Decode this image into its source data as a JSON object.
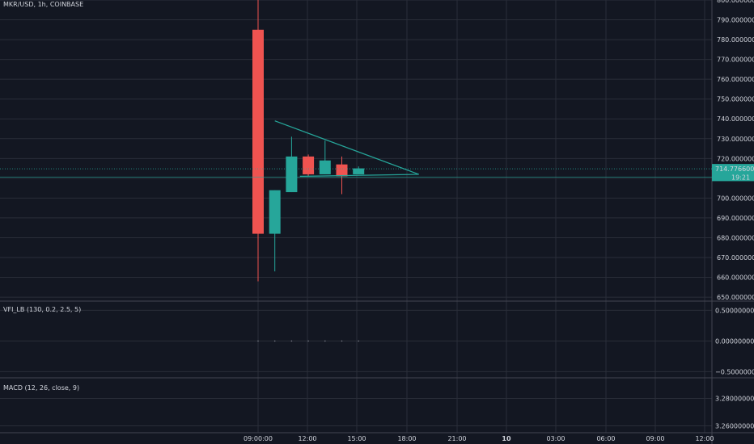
{
  "symbol_label": "MKR/USD, 1h, COINBASE",
  "colors": {
    "background": "#131722",
    "grid": "#2a2e39",
    "up": "#26a69a",
    "down": "#ef5350",
    "trendline": "#26a69a",
    "text": "#d1d4dc"
  },
  "chart_data": [
    {
      "type": "candlestick",
      "title": "MKR/USD, 1h, COINBASE",
      "x_ticks": [
        "09:00:00",
        "12:00",
        "15:00",
        "18:00",
        "21:00",
        "10",
        "03:00",
        "06:00",
        "09:00",
        "12:00"
      ],
      "y_ticks": [
        "800.00000000",
        "790.00000000",
        "780.00000000",
        "770.00000000",
        "760.00000000",
        "750.00000000",
        "740.00000000",
        "730.00000000",
        "720.00000000",
        "710.00000000",
        "700.00000000",
        "690.00000000",
        "680.00000000",
        "670.00000000",
        "660.00000000",
        "650.00000000"
      ],
      "ylim": [
        648,
        800
      ],
      "candles": [
        {
          "t": 0,
          "open": 785,
          "high": 800,
          "low": 658,
          "close": 682
        },
        {
          "t": 1,
          "open": 682,
          "high": 704,
          "low": 663,
          "close": 704
        },
        {
          "t": 2,
          "open": 703,
          "high": 731,
          "low": 703,
          "close": 721
        },
        {
          "t": 3,
          "open": 721,
          "high": 722,
          "low": 711,
          "close": 712
        },
        {
          "t": 4,
          "open": 712,
          "high": 729,
          "low": 712,
          "close": 719
        },
        {
          "t": 5,
          "open": 717,
          "high": 721,
          "low": 702,
          "close": 711
        },
        {
          "t": 6,
          "open": 712,
          "high": 716,
          "low": 712,
          "close": 715
        }
      ],
      "triangle": {
        "upper": [
          [
            1,
            739
          ],
          [
            9.6,
            712
          ]
        ],
        "lower": [
          [
            2.5,
            711
          ],
          [
            9.6,
            712
          ]
        ]
      },
      "price_line": "714.77660000",
      "countdown": "19:21",
      "last_price": 714.7766,
      "countdown_level": 710.6
    },
    {
      "type": "line",
      "title": "VFI_LB (130, 0.2, 2.5, 5)",
      "y_ticks": [
        "0.50000000",
        "0.00000000",
        "−0.50000000"
      ],
      "ylim": [
        -0.6,
        0.65
      ],
      "values": [
        0,
        0,
        0,
        0,
        0,
        0,
        0
      ]
    },
    {
      "type": "line",
      "title": "MACD (12, 26, close, 9)",
      "y_ticks": [
        "3.28000000",
        "3.26000000"
      ],
      "ylim": [
        3.255,
        3.295
      ],
      "values": []
    }
  ]
}
